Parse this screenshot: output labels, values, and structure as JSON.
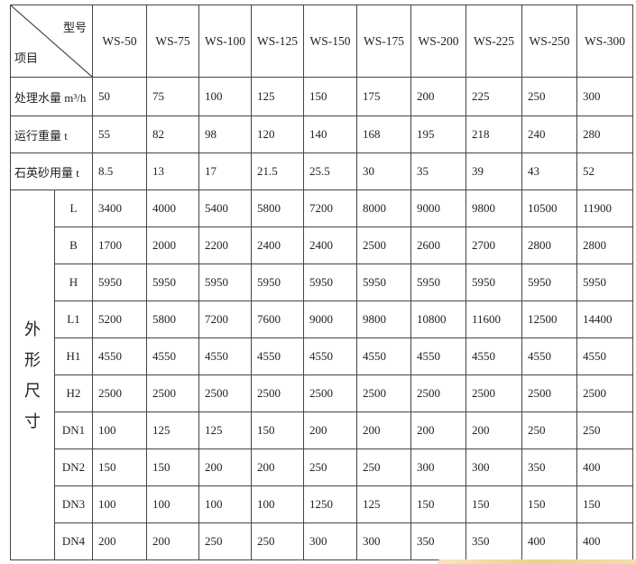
{
  "header": {
    "corner_top": "型号",
    "corner_bottom": "项目",
    "models": [
      "WS-50",
      "WS-75",
      "WS-100",
      "WS-125",
      "WS-150",
      "WS-175",
      "WS-200",
      "WS-225",
      "WS-250",
      "WS-300"
    ]
  },
  "rows": [
    {
      "label": "处理水量 m³/h",
      "values": [
        "50",
        "75",
        "100",
        "125",
        "150",
        "175",
        "200",
        "225",
        "250",
        "300"
      ]
    },
    {
      "label": "运行重量 t",
      "values": [
        "55",
        "82",
        "98",
        "120",
        "140",
        "168",
        "195",
        "218",
        "240",
        "280"
      ]
    },
    {
      "label": "石英砂用量 t",
      "values": [
        "8.5",
        "13",
        "17",
        "21.5",
        "25.5",
        "30",
        "35",
        "39",
        "43",
        "52"
      ]
    }
  ],
  "dimensions": {
    "group_label": [
      "外",
      "形",
      "尺",
      "寸"
    ],
    "rows": [
      {
        "label": "L",
        "values": [
          "3400",
          "4000",
          "5400",
          "5800",
          "7200",
          "8000",
          "9000",
          "9800",
          "10500",
          "11900"
        ]
      },
      {
        "label": "B",
        "values": [
          "1700",
          "2000",
          "2200",
          "2400",
          "2400",
          "2500",
          "2600",
          "2700",
          "2800",
          "2800"
        ]
      },
      {
        "label": "H",
        "values": [
          "5950",
          "5950",
          "5950",
          "5950",
          "5950",
          "5950",
          "5950",
          "5950",
          "5950",
          "5950"
        ]
      },
      {
        "label": "L1",
        "values": [
          "5200",
          "5800",
          "7200",
          "7600",
          "9000",
          "9800",
          "10800",
          "11600",
          "12500",
          "14400"
        ]
      },
      {
        "label": "H1",
        "values": [
          "4550",
          "4550",
          "4550",
          "4550",
          "4550",
          "4550",
          "4550",
          "4550",
          "4550",
          "4550"
        ]
      },
      {
        "label": "H2",
        "values": [
          "2500",
          "2500",
          "2500",
          "2500",
          "2500",
          "2500",
          "2500",
          "2500",
          "2500",
          "2500"
        ]
      },
      {
        "label": "DN1",
        "values": [
          "100",
          "125",
          "125",
          "150",
          "200",
          "200",
          "200",
          "200",
          "250",
          "250"
        ]
      },
      {
        "label": "DN2",
        "values": [
          "150",
          "150",
          "200",
          "200",
          "250",
          "250",
          "300",
          "300",
          "350",
          "400"
        ]
      },
      {
        "label": "DN3",
        "values": [
          "100",
          "100",
          "100",
          "100",
          "1250",
          "125",
          "150",
          "150",
          "150",
          "150"
        ]
      },
      {
        "label": "DN4",
        "values": [
          "200",
          "200",
          "250",
          "250",
          "300",
          "300",
          "350",
          "350",
          "400",
          "400"
        ]
      }
    ]
  }
}
